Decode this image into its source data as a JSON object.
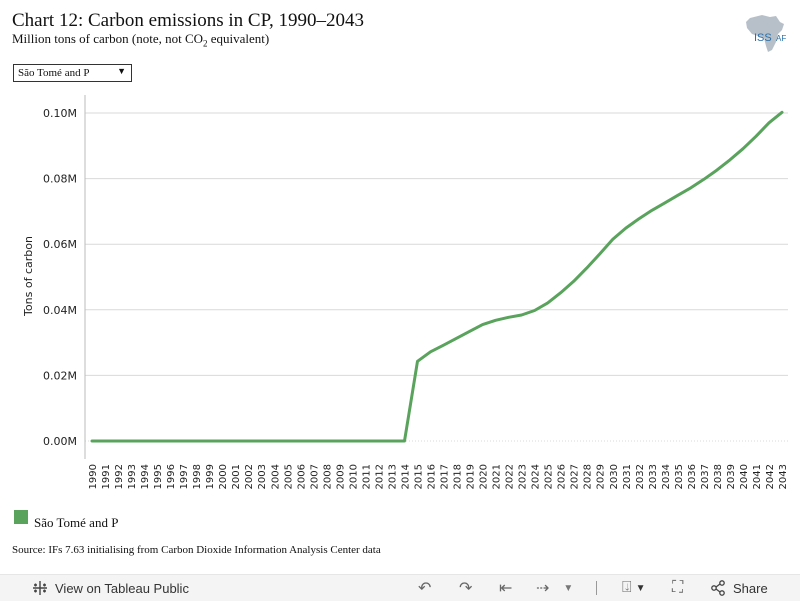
{
  "header": {
    "title": "Chart 12: Carbon emissions in CP, 1990–2043",
    "subtitle_pre": "Million tons of carbon (note, not CO",
    "subtitle_sub": "2",
    "subtitle_post": " equivalent)"
  },
  "logo": {
    "text": "ISS",
    "suffix": "AF",
    "icon": "africa-map-icon"
  },
  "filter": {
    "selected": "São Tomé and P",
    "icon": "dropdown-arrow-icon"
  },
  "legend": {
    "label": "São Tomé and P",
    "color": "#59a35c"
  },
  "source": "Source: IFs 7.63 initialising from Carbon Dioxide Information Analysis Center data",
  "toolbar": {
    "view_label": "View on Tableau Public",
    "share_label": "Share",
    "icons": [
      "tableau-icon",
      "undo-icon",
      "redo-icon",
      "revert-icon",
      "refresh-icon",
      "download-icon",
      "fullscreen-icon",
      "share-icon"
    ]
  },
  "chart_data": {
    "type": "line",
    "title": "",
    "xlabel": "",
    "ylabel": "Tons of carbon",
    "x": [
      1990,
      1991,
      1992,
      1993,
      1994,
      1995,
      1996,
      1997,
      1998,
      1999,
      2000,
      2001,
      2002,
      2003,
      2004,
      2005,
      2006,
      2007,
      2008,
      2009,
      2010,
      2011,
      2012,
      2013,
      2014,
      2015,
      2016,
      2017,
      2018,
      2019,
      2020,
      2021,
      2022,
      2023,
      2024,
      2025,
      2026,
      2027,
      2028,
      2029,
      2030,
      2031,
      2032,
      2033,
      2034,
      2035,
      2036,
      2037,
      2038,
      2039,
      2040,
      2041,
      2042,
      2043
    ],
    "xticks": [
      "1990",
      "1991",
      "1992",
      "1993",
      "1994",
      "1995",
      "1996",
      "1997",
      "1998",
      "1999",
      "2000",
      "2001",
      "2002",
      "2003",
      "2004",
      "2005",
      "2006",
      "2007",
      "2008",
      "2009",
      "2010",
      "2011",
      "2012",
      "2013",
      "2014",
      "2015",
      "2016",
      "2017",
      "2018",
      "2019",
      "2020",
      "2021",
      "2022",
      "2023",
      "2024",
      "2025",
      "2026",
      "2027",
      "2028",
      "2029",
      "2030",
      "2031",
      "2032",
      "2033",
      "2034",
      "2035",
      "2036",
      "2037",
      "2038",
      "2039",
      "2040",
      "2041",
      "2042",
      "2043"
    ],
    "series": [
      {
        "name": "São Tomé and P",
        "color": "#59a35c",
        "values": [
          0,
          0,
          0,
          0,
          0,
          0,
          0,
          0,
          0,
          0,
          0,
          0,
          0,
          0,
          0,
          0,
          0,
          0,
          0,
          0,
          0,
          0,
          0,
          0,
          0,
          0.0243,
          0.0272,
          0.0292,
          0.0313,
          0.0334,
          0.0355,
          0.0368,
          0.0377,
          0.0384,
          0.0398,
          0.0421,
          0.0452,
          0.0487,
          0.0527,
          0.057,
          0.0615,
          0.0649,
          0.0677,
          0.0703,
          0.0726,
          0.0749,
          0.0772,
          0.0798,
          0.0826,
          0.0857,
          0.0891,
          0.0929,
          0.097,
          0.1002
        ]
      }
    ],
    "ylim": [
      0,
      0.1
    ],
    "yticks": [
      {
        "value": 0.0,
        "label": "0.00M"
      },
      {
        "value": 0.02,
        "label": "0.02M"
      },
      {
        "value": 0.04,
        "label": "0.04M"
      },
      {
        "value": 0.06,
        "label": "0.06M"
      },
      {
        "value": 0.08,
        "label": "0.08M"
      },
      {
        "value": 0.1,
        "label": "0.10M"
      }
    ],
    "grid": true,
    "legend_position": "bottom-left"
  }
}
